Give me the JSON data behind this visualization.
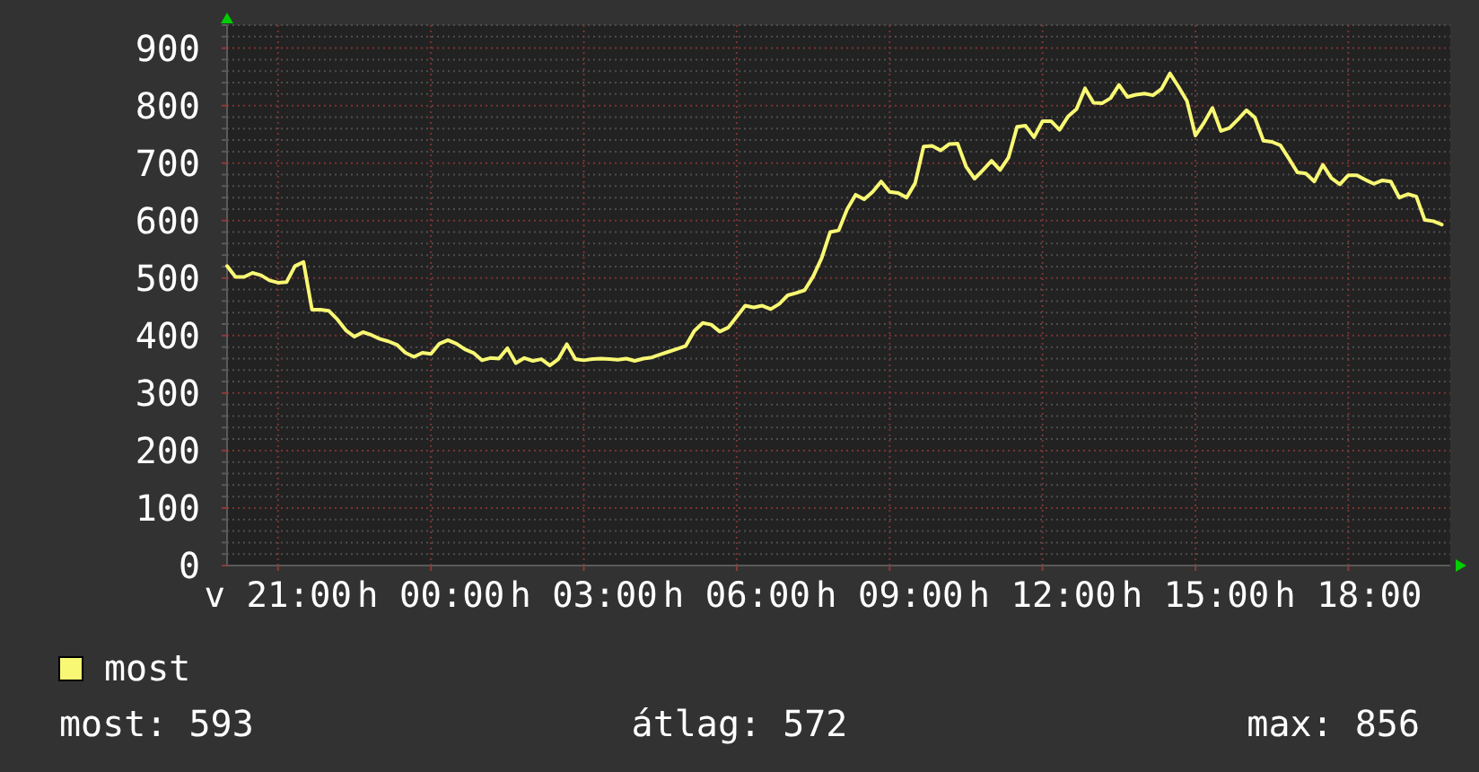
{
  "chart_data": {
    "type": "line",
    "categories": [
      null,
      null,
      null,
      null,
      null,
      null,
      "v 21:00",
      null,
      null,
      null,
      null,
      null,
      null,
      null,
      null,
      null,
      null,
      null,
      null,
      null,
      null,
      null,
      null,
      null,
      "h 00:00",
      null,
      null,
      null,
      null,
      null,
      null,
      null,
      null,
      null,
      null,
      null,
      null,
      null,
      null,
      null,
      null,
      null,
      "h 03:00",
      null,
      null,
      null,
      null,
      null,
      null,
      null,
      null,
      null,
      null,
      null,
      null,
      null,
      null,
      null,
      null,
      null,
      "h 06:00",
      null,
      null,
      null,
      null,
      null,
      null,
      null,
      null,
      null,
      null,
      null,
      null,
      null,
      null,
      null,
      null,
      null,
      "h 09:00",
      null,
      null,
      null,
      null,
      null,
      null,
      null,
      null,
      null,
      null,
      null,
      null,
      null,
      null,
      null,
      null,
      null,
      "h 12:00",
      null,
      null,
      null,
      null,
      null,
      null,
      null,
      null,
      null,
      null,
      null,
      null,
      null,
      null,
      null,
      null,
      null,
      "h 15:00",
      null,
      null,
      null,
      null,
      null,
      null,
      null,
      null,
      null,
      null,
      null,
      null,
      null,
      null,
      null,
      null,
      null,
      "h 18:00",
      null,
      null,
      null,
      null,
      null,
      null,
      null,
      null,
      null,
      null,
      null
    ],
    "ylim": [
      0,
      940
    ],
    "yticks": [
      0,
      {
        "value": 20,
        "label": null
      },
      {
        "value": 40,
        "label": null
      },
      {
        "value": 60,
        "label": null
      },
      {
        "value": 80,
        "label": null
      },
      100,
      {
        "value": 120,
        "label": null
      },
      {
        "value": 140,
        "label": null
      },
      {
        "value": 160,
        "label": null
      },
      {
        "value": 180,
        "label": null
      },
      200,
      {
        "value": 220,
        "label": null
      },
      {
        "value": 240,
        "label": null
      },
      {
        "value": 260,
        "label": null
      },
      {
        "value": 280,
        "label": null
      },
      300,
      {
        "value": 320,
        "label": null
      },
      {
        "value": 340,
        "label": null
      },
      {
        "value": 360,
        "label": null
      },
      {
        "value": 380,
        "label": null
      },
      400,
      {
        "value": 420,
        "label": null
      },
      {
        "value": 440,
        "label": null
      },
      {
        "value": 460,
        "label": null
      },
      {
        "value": 480,
        "label": null
      },
      500,
      {
        "value": 520,
        "label": null
      },
      {
        "value": 540,
        "label": null
      },
      {
        "value": 560,
        "label": null
      },
      {
        "value": 580,
        "label": null
      },
      600,
      {
        "value": 620,
        "label": null
      },
      {
        "value": 640,
        "label": null
      },
      {
        "value": 660,
        "label": null
      },
      {
        "value": 680,
        "label": null
      },
      700,
      {
        "value": 720,
        "label": null
      },
      {
        "value": 740,
        "label": null
      },
      {
        "value": 760,
        "label": null
      },
      {
        "value": 780,
        "label": null
      },
      800,
      {
        "value": 820,
        "label": null
      },
      {
        "value": 840,
        "label": null
      },
      {
        "value": 860,
        "label": null
      },
      {
        "value": 880,
        "label": null
      },
      900,
      {
        "value": 920,
        "label": null
      },
      {
        "value": 940,
        "label": null
      }
    ],
    "grid": true,
    "legend": "bottom left",
    "series": [
      {
        "name": "most",
        "color": "#f8f874",
        "values": [
          521,
          502,
          502,
          509,
          505,
          496,
          492,
          493,
          521,
          528,
          445,
          445,
          443,
          428,
          409,
          398,
          406,
          401,
          394,
          390,
          384,
          370,
          363,
          370,
          368,
          386,
          392,
          386,
          376,
          370,
          357,
          361,
          360,
          378,
          352,
          361,
          356,
          359,
          348,
          359,
          385,
          359,
          357,
          359,
          360,
          359,
          358,
          360,
          356,
          360,
          362,
          367,
          372,
          377,
          382,
          408,
          422,
          419,
          407,
          414,
          433,
          452,
          449,
          452,
          446,
          455,
          470,
          474,
          479,
          503,
          535,
          580,
          583,
          620,
          645,
          637,
          650,
          668,
          650,
          648,
          640,
          665,
          729,
          730,
          722,
          733,
          734,
          694,
          673,
          688,
          704,
          688,
          710,
          763,
          765,
          745,
          773,
          773,
          758,
          781,
          794,
          830,
          805,
          804,
          813,
          836,
          815,
          819,
          821,
          818,
          829,
          856,
          833,
          808,
          748,
          770,
          796,
          756,
          761,
          776,
          792,
          779,
          739,
          737,
          731,
          708,
          684,
          682,
          668,
          697,
          674,
          663,
          679,
          679,
          671,
          664,
          670,
          668,
          640,
          646,
          642,
          601,
          599,
          593
        ]
      }
    ],
    "annotations": [
      "most: 593",
      "átlag: 572",
      "max: 856"
    ]
  }
}
